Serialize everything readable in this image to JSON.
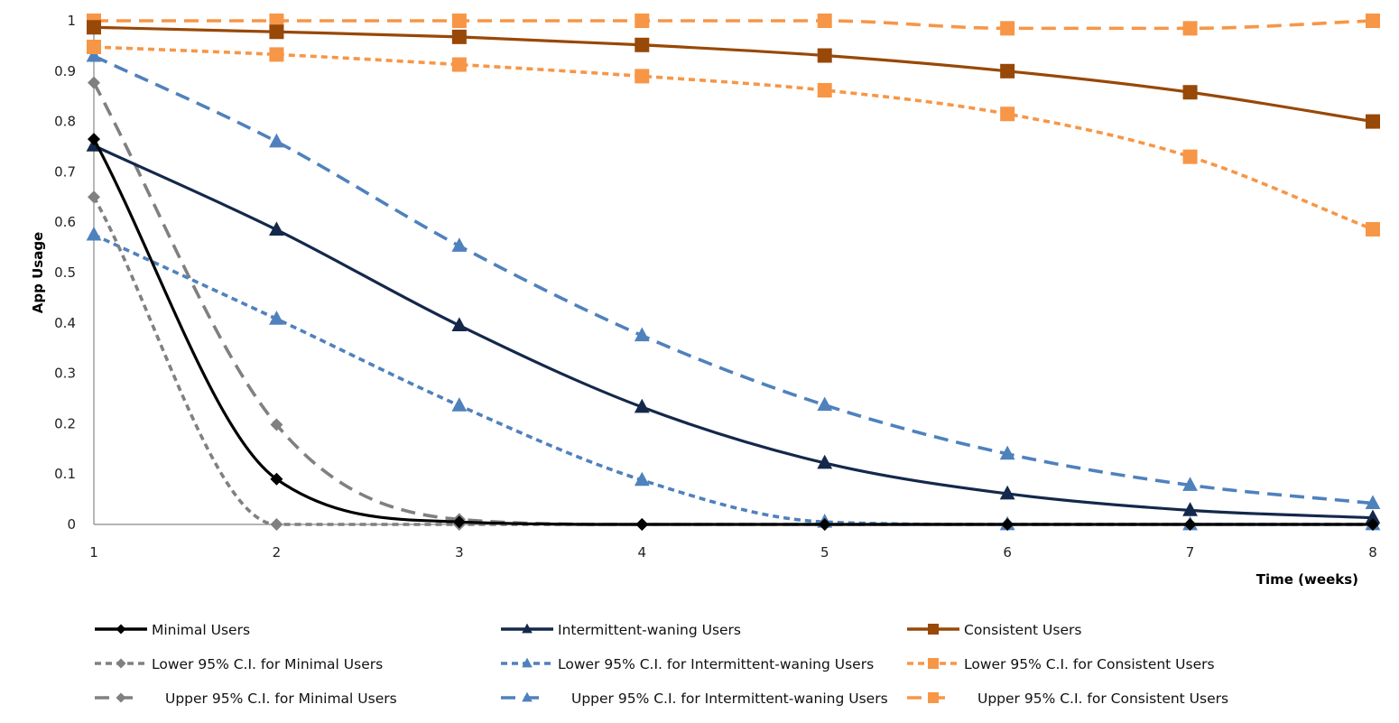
{
  "chart_data": {
    "type": "line",
    "title": "",
    "xlabel": "Time (weeks)",
    "ylabel": "App Usage",
    "x": [
      1,
      2,
      3,
      4,
      5,
      6,
      7,
      8
    ],
    "xlim": [
      1,
      8
    ],
    "ylim": [
      0,
      1
    ],
    "x_ticks": [
      "1",
      "2",
      "3",
      "4",
      "5",
      "6",
      "7",
      "8"
    ],
    "y_ticks": [
      "0",
      "0.1",
      "0.2",
      "0.3",
      "0.4",
      "0.5",
      "0.6",
      "0.7",
      "0.8",
      "0.9",
      "1"
    ],
    "grid": false,
    "legend_position": "bottom",
    "series": [
      {
        "name": "Minimal Users",
        "color": "#000000",
        "dash": "solid",
        "marker": "diamond",
        "smooth": true,
        "values": [
          0.765,
          0.09,
          0.005,
          0,
          0,
          0,
          0,
          0
        ]
      },
      {
        "name": "Intermittent-waning Users",
        "color": "#14284b",
        "dash": "solid",
        "marker": "triangle",
        "smooth": true,
        "values": [
          0.752,
          0.585,
          0.395,
          0.233,
          0.122,
          0.061,
          0.028,
          0.013
        ]
      },
      {
        "name": "Consistent Users",
        "color": "#984807",
        "dash": "solid",
        "marker": "square",
        "smooth": true,
        "values": [
          0.987,
          0.978,
          0.968,
          0.952,
          0.931,
          0.9,
          0.858,
          0.8
        ]
      },
      {
        "name": "Lower 95% C.I. for Minimal Users",
        "color": "#808080",
        "dash": "short",
        "marker": "diamond",
        "smooth": true,
        "values": [
          0.65,
          0,
          0,
          0,
          0,
          0,
          0,
          0
        ]
      },
      {
        "name": "Lower 95% C.I. for Intermittent-waning Users",
        "color": "#4f81bd",
        "dash": "short",
        "marker": "triangle",
        "smooth": true,
        "values": [
          0.575,
          0.408,
          0.236,
          0.088,
          0.005,
          0,
          0,
          0
        ]
      },
      {
        "name": "Lower 95% C.I. for  Consistent Users",
        "color": "#f79646",
        "dash": "short",
        "marker": "square",
        "smooth": true,
        "values": [
          0.948,
          0.933,
          0.913,
          0.89,
          0.862,
          0.815,
          0.73,
          0.586
        ]
      },
      {
        "name": "Upper 95% C.I. for Minimal Users",
        "color": "#808080",
        "dash": "long",
        "marker": "diamond",
        "smooth": true,
        "values": [
          0.877,
          0.198,
          0.01,
          0,
          0,
          0,
          0,
          0
        ]
      },
      {
        "name": "Upper 95% C.I. for Intermittent-waning Users",
        "color": "#4f81bd",
        "dash": "long",
        "marker": "triangle",
        "smooth": true,
        "values": [
          0.93,
          0.76,
          0.553,
          0.375,
          0.237,
          0.14,
          0.078,
          0.042
        ]
      },
      {
        "name": "Upper 95% C.I. for Consistent Users",
        "color": "#f79646",
        "dash": "long",
        "marker": "square",
        "smooth": true,
        "values": [
          1.0,
          1.0,
          1.0,
          1.0,
          1.0,
          0.985,
          0.985,
          1.0
        ]
      }
    ]
  }
}
